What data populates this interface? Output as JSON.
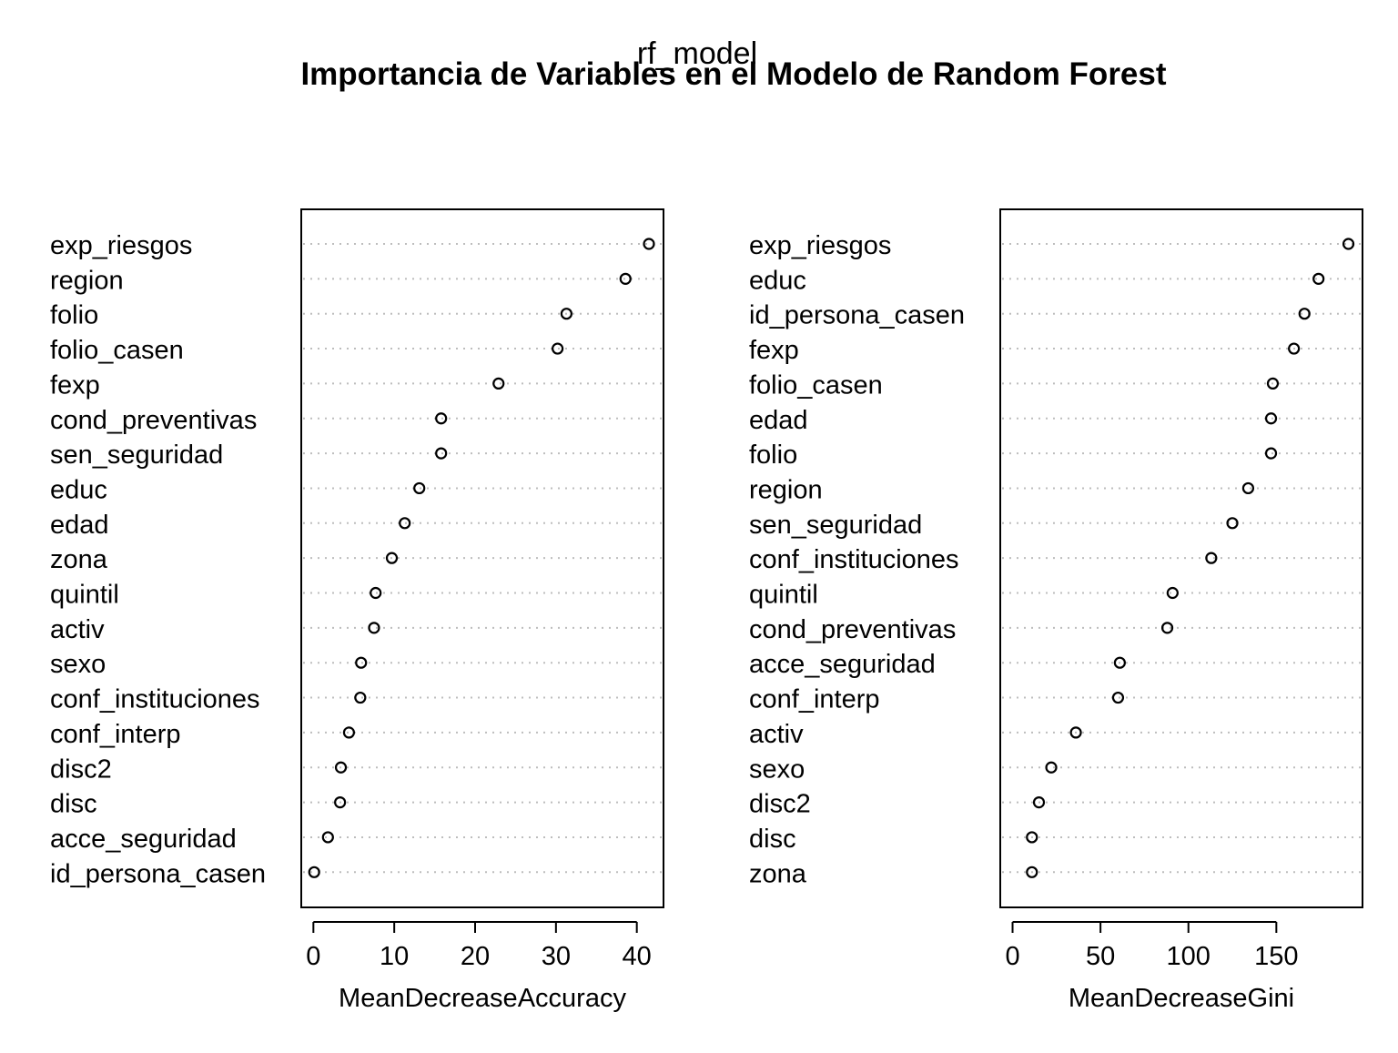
{
  "figure": {
    "subtitle": "rf_model",
    "title": "Importancia de Variables en el Modelo de Random Forest"
  },
  "chart_data": [
    {
      "type": "scatter",
      "style": "dotchart",
      "xlabel": "MeanDecreaseAccuracy",
      "xlim": [
        -1.5,
        43.3
      ],
      "xticks": [
        0,
        10,
        20,
        30,
        40
      ],
      "grid": "dotted horizontal",
      "categories": [
        "exp_riesgos",
        "region",
        "folio",
        "folio_casen",
        "fexp",
        "cond_preventivas",
        "sen_seguridad",
        "educ",
        "edad",
        "zona",
        "quintil",
        "activ",
        "sexo",
        "conf_instituciones",
        "conf_interp",
        "disc2",
        "disc",
        "acce_seguridad",
        "id_persona_casen"
      ],
      "values": [
        41.5,
        38.6,
        31.3,
        30.2,
        22.9,
        15.8,
        15.8,
        13.1,
        11.3,
        9.7,
        7.7,
        7.5,
        5.9,
        5.8,
        4.4,
        3.4,
        3.3,
        1.8,
        0.1
      ]
    },
    {
      "type": "scatter",
      "style": "dotchart",
      "xlabel": "MeanDecreaseGini",
      "xlim": [
        -7,
        199
      ],
      "xticks": [
        0,
        50,
        100,
        150
      ],
      "grid": "dotted horizontal",
      "categories": [
        "exp_riesgos",
        "educ",
        "id_persona_casen",
        "fexp",
        "folio_casen",
        "edad",
        "folio",
        "region",
        "sen_seguridad",
        "conf_instituciones",
        "quintil",
        "cond_preventivas",
        "acce_seguridad",
        "conf_interp",
        "activ",
        "sexo",
        "disc2",
        "disc",
        "zona"
      ],
      "values": [
        191,
        174,
        166,
        160,
        148,
        147,
        147,
        134,
        125,
        113,
        91,
        88,
        61,
        60,
        36,
        22,
        15,
        11,
        11
      ]
    }
  ]
}
